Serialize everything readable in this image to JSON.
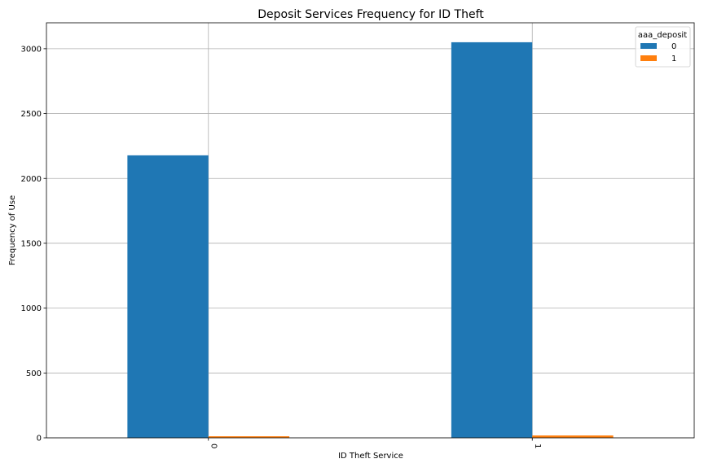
{
  "chart_data": {
    "type": "bar",
    "title": "Deposit Services Frequency for ID Theft",
    "xlabel": "ID Theft Service",
    "ylabel": "Frequency of Use",
    "categories": [
      "0",
      "1"
    ],
    "series": [
      {
        "name": "0",
        "values": [
          2178,
          3050
        ],
        "color": "#1f77b4"
      },
      {
        "name": "1",
        "values": [
          12,
          18
        ],
        "color": "#ff7f0e"
      }
    ],
    "ylim": [
      0,
      3200
    ],
    "yticks": [
      0,
      500,
      1000,
      1500,
      2000,
      2500,
      3000
    ],
    "grid": true,
    "legend": {
      "title": "aaa_deposit",
      "placement": "top-right"
    }
  }
}
